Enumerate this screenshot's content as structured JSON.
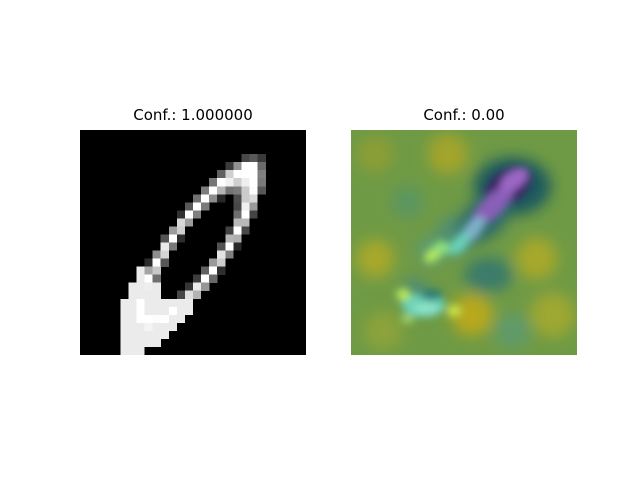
{
  "panels": [
    {
      "title": "Conf.: 1.000000",
      "image": "mnist-digit-zero",
      "colormap": "grayscale"
    },
    {
      "title": "Conf.: 0.00",
      "image": "saliency-heatmap-overlay",
      "colormap": "viridis-like",
      "colors": {
        "background": "#6f9a45",
        "yellow_patch": "#b8a81e",
        "dark_teal": "#1f5a5e",
        "deep_purple": "#3c2060",
        "violet": "#8a5fb8",
        "cyan": "#68d0b8",
        "light_green": "#b6e85a"
      }
    }
  ]
}
